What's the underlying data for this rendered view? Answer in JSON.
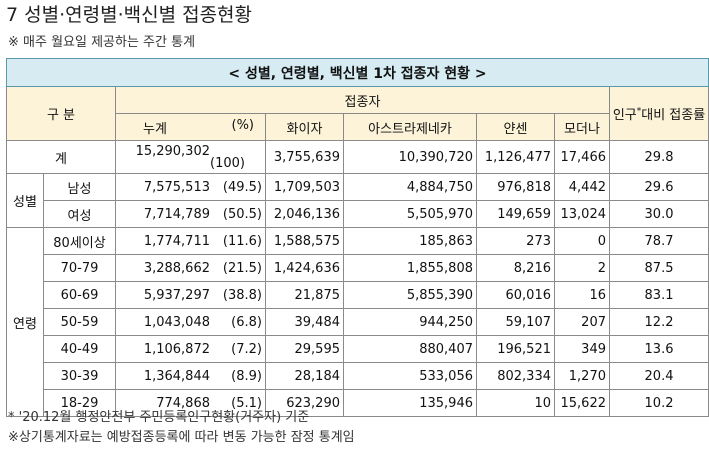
{
  "heading": "7 성별·연령별·백신별 접종현황",
  "top_note": "※ 매주 월요일 제공하는 주간 통계",
  "table": {
    "caption": "< 성별, 연령별, 백신별 1차 접종자 현황 >",
    "header": {
      "group": "구 분",
      "vaccinated": "접종자",
      "cumulative": "누계",
      "percent": "(%)",
      "pfizer": "화이자",
      "astrazeneca": "아스트라제네카",
      "janssen": "얀센",
      "moderna": "모더나",
      "ratio_prefix": "인구",
      "ratio_star": "*",
      "ratio_suffix": "대비 접종률"
    },
    "total": {
      "label": "계",
      "cumulative": "15,290,302",
      "percent": "(100)",
      "pfizer": "3,755,639",
      "astrazeneca": "10,390,720",
      "janssen": "1,126,477",
      "moderna": "17,466",
      "ratio": "29.8"
    },
    "sex_label": "성별",
    "sex_rows": [
      {
        "label": "남성",
        "cumulative": "7,575,513",
        "percent": "(49.5)",
        "pfizer": "1,709,503",
        "astrazeneca": "4,884,750",
        "janssen": "976,818",
        "moderna": "4,442",
        "ratio": "29.6"
      },
      {
        "label": "여성",
        "cumulative": "7,714,789",
        "percent": "(50.5)",
        "pfizer": "2,046,136",
        "astrazeneca": "5,505,970",
        "janssen": "149,659",
        "moderna": "13,024",
        "ratio": "30.0"
      }
    ],
    "age_label": "연령",
    "age_rows": [
      {
        "label": "80세이상",
        "cumulative": "1,774,711",
        "percent": "(11.6)",
        "pfizer": "1,588,575",
        "astrazeneca": "185,863",
        "janssen": "273",
        "moderna": "0",
        "ratio": "78.7"
      },
      {
        "label": "70-79",
        "cumulative": "3,288,662",
        "percent": "(21.5)",
        "pfizer": "1,424,636",
        "astrazeneca": "1,855,808",
        "janssen": "8,216",
        "moderna": "2",
        "ratio": "87.5"
      },
      {
        "label": "60-69",
        "cumulative": "5,937,297",
        "percent": "(38.8)",
        "pfizer": "21,875",
        "astrazeneca": "5,855,390",
        "janssen": "60,016",
        "moderna": "16",
        "ratio": "83.1"
      },
      {
        "label": "50-59",
        "cumulative": "1,043,048",
        "percent": "(6.8)",
        "pfizer": "39,484",
        "astrazeneca": "944,250",
        "janssen": "59,107",
        "moderna": "207",
        "ratio": "12.2"
      },
      {
        "label": "40-49",
        "cumulative": "1,106,872",
        "percent": "(7.2)",
        "pfizer": "29,595",
        "astrazeneca": "880,407",
        "janssen": "196,521",
        "moderna": "349",
        "ratio": "13.6"
      },
      {
        "label": "30-39",
        "cumulative": "1,364,844",
        "percent": "(8.9)",
        "pfizer": "28,184",
        "astrazeneca": "533,056",
        "janssen": "802,334",
        "moderna": "1,270",
        "ratio": "20.4"
      },
      {
        "label": "18-29",
        "cumulative": "774,868",
        "percent": "(5.1)",
        "pfizer": "623,290",
        "astrazeneca": "135,946",
        "janssen": "10",
        "moderna": "15,622",
        "ratio": "10.2"
      }
    ]
  },
  "footnotes": [
    "* '20.12월 행정안전부 주민등록인구현황(거주자) 기준",
    "※상기통계자료는 예방접종등록에 따라 변동 가능한 잠정 통계임"
  ]
}
